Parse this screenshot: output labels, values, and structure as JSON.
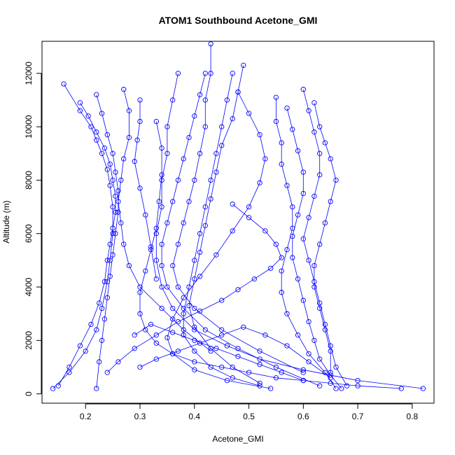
{
  "chart_data": {
    "type": "scatter",
    "title": "ATOM1 Southbound Acetone_GMI",
    "xlabel": "Acetone_GMI",
    "ylabel": "Altitude (m)",
    "xlim": [
      0.12,
      0.84
    ],
    "ylim": [
      -350,
      13200
    ],
    "xticks": [
      "0.2",
      "0.3",
      "0.4",
      "0.5",
      "0.6",
      "0.7",
      "0.8"
    ],
    "yticks": [
      "0",
      "2000",
      "4000",
      "6000",
      "8000",
      "10000",
      "12000"
    ],
    "grid": false,
    "legend": "none",
    "marker": "open circle",
    "line": true,
    "color": "#0000FF",
    "series": [
      {
        "x": [
          0.16,
          0.19,
          0.21,
          0.22,
          0.23,
          0.24,
          0.245,
          0.25,
          0.25,
          0.245,
          0.24,
          0.23,
          0.22,
          0.2,
          0.17,
          0.14
        ],
        "y": [
          11600,
          10600,
          10000,
          9500,
          9000,
          8400,
          7800,
          7000,
          6000,
          5000,
          4200,
          3200,
          2400,
          1600,
          800,
          200
        ]
      },
      {
        "x": [
          0.19,
          0.205,
          0.22,
          0.235,
          0.245,
          0.25,
          0.255,
          0.255,
          0.25,
          0.245,
          0.24,
          0.235,
          0.225,
          0.21,
          0.19,
          0.17,
          0.15
        ],
        "y": [
          10900,
          10400,
          9800,
          9200,
          8600,
          8000,
          7400,
          6800,
          6200,
          5600,
          5000,
          4200,
          3400,
          2600,
          1800,
          1000,
          300
        ]
      },
      {
        "x": [
          0.22,
          0.23,
          0.24,
          0.25,
          0.255,
          0.26,
          0.26,
          0.255,
          0.25,
          0.245,
          0.24,
          0.235,
          0.23,
          0.225,
          0.22
        ],
        "y": [
          11200,
          10500,
          9700,
          9000,
          8300,
          7600,
          6800,
          6000,
          5200,
          4400,
          3600,
          2800,
          2000,
          1200,
          200
        ]
      },
      {
        "x": [
          0.27,
          0.28,
          0.28,
          0.27,
          0.265,
          0.26,
          0.265,
          0.27,
          0.28,
          0.3,
          0.34,
          0.38,
          0.43
        ],
        "y": [
          11400,
          10600,
          9600,
          8800,
          8000,
          7200,
          6400,
          5600,
          4800,
          4000,
          3200,
          2400,
          1600
        ]
      },
      {
        "x": [
          0.3,
          0.3,
          0.295,
          0.29,
          0.3,
          0.31,
          0.32,
          0.33
        ],
        "y": [
          11000,
          10200,
          9500,
          8700,
          7700,
          6700,
          5500,
          4300
        ]
      },
      {
        "x": [
          0.33,
          0.34,
          0.34,
          0.335,
          0.33,
          0.32,
          0.31,
          0.3,
          0.3,
          0.31,
          0.33,
          0.36,
          0.4,
          0.45,
          0.5,
          0.55,
          0.6,
          0.65,
          0.7,
          0.78
        ],
        "y": [
          10200,
          9200,
          8200,
          7200,
          6200,
          5400,
          4600,
          3800,
          3000,
          2400,
          1900,
          1500,
          1200,
          1000,
          800,
          600,
          500,
          400,
          300,
          200
        ]
      },
      {
        "x": [
          0.37,
          0.36,
          0.35,
          0.35,
          0.34,
          0.34,
          0.33,
          0.33,
          0.34,
          0.36,
          0.4,
          0.46,
          0.52,
          0.6,
          0.7,
          0.82
        ],
        "y": [
          12000,
          11000,
          10000,
          9000,
          8000,
          7000,
          6000,
          5000,
          4000,
          3200,
          2400,
          1800,
          1300,
          900,
          500,
          200
        ]
      },
      {
        "x": [
          0.42,
          0.41,
          0.4,
          0.39,
          0.38,
          0.37,
          0.36,
          0.35,
          0.34,
          0.34,
          0.35,
          0.38,
          0.42,
          0.48,
          0.55,
          0.63
        ],
        "y": [
          12000,
          11200,
          10400,
          9600,
          8800,
          8000,
          7200,
          6400,
          5600,
          4800,
          4000,
          3200,
          2400,
          1700,
          1000,
          300
        ]
      },
      {
        "x": [
          0.43,
          0.43,
          0.42,
          0.42,
          0.41,
          0.4,
          0.39,
          0.38,
          0.37,
          0.36,
          0.37,
          0.4,
          0.45,
          0.52,
          0.6
        ],
        "y": [
          13100,
          12000,
          11000,
          10000,
          9000,
          8000,
          7200,
          6400,
          5600,
          4800,
          4000,
          3200,
          2400,
          1600,
          800
        ]
      },
      {
        "x": [
          0.47,
          0.46,
          0.45,
          0.44,
          0.43,
          0.42,
          0.41,
          0.4,
          0.39,
          0.38,
          0.38,
          0.4,
          0.43,
          0.47,
          0.52
        ],
        "y": [
          12000,
          11000,
          10000,
          9000,
          8000,
          7000,
          6000,
          5000,
          4000,
          3000,
          2200,
          1600,
          1000,
          600,
          300
        ]
      },
      {
        "x": [
          0.49,
          0.48,
          0.47,
          0.45,
          0.44,
          0.43,
          0.42,
          0.41,
          0.4,
          0.39,
          0.4,
          0.43,
          0.47,
          0.52
        ],
        "y": [
          12300,
          11300,
          10300,
          9300,
          8300,
          7300,
          6300,
          5300,
          4300,
          3300,
          2500,
          1700,
          1000,
          400
        ]
      },
      {
        "x": [
          0.48,
          0.5,
          0.52,
          0.53,
          0.52,
          0.5,
          0.47,
          0.44,
          0.41,
          0.38,
          0.36,
          0.35,
          0.36,
          0.4,
          0.46,
          0.54
        ],
        "y": [
          11300,
          10500,
          9700,
          8800,
          7900,
          7000,
          6100,
          5200,
          4400,
          3600,
          2800,
          2100,
          1500,
          900,
          500,
          200
        ]
      },
      {
        "x": [
          0.55,
          0.55,
          0.56,
          0.56,
          0.57,
          0.58,
          0.58,
          0.57,
          0.56,
          0.56,
          0.57,
          0.59,
          0.61,
          0.64,
          0.66
        ],
        "y": [
          11100,
          10200,
          9400,
          8600,
          7800,
          7000,
          6200,
          5400,
          4600,
          3800,
          3000,
          2200,
          1500,
          800,
          200
        ]
      },
      {
        "x": [
          0.57,
          0.58,
          0.59,
          0.6,
          0.6,
          0.59,
          0.58,
          0.58,
          0.59,
          0.6,
          0.61,
          0.62,
          0.63,
          0.65,
          0.67
        ],
        "y": [
          10700,
          9900,
          9100,
          8300,
          7500,
          6700,
          5900,
          5100,
          4300,
          3500,
          2700,
          2000,
          1300,
          700,
          200
        ]
      },
      {
        "x": [
          0.6,
          0.61,
          0.62,
          0.63,
          0.63,
          0.62,
          0.61,
          0.6,
          0.61,
          0.62,
          0.63,
          0.64,
          0.65,
          0.66,
          0.68
        ],
        "y": [
          11400,
          10600,
          9800,
          9000,
          8200,
          7400,
          6600,
          5800,
          5000,
          4200,
          3400,
          2600,
          1800,
          1000,
          300
        ]
      },
      {
        "x": [
          0.62,
          0.63,
          0.64,
          0.65,
          0.66,
          0.65,
          0.64,
          0.63,
          0.62,
          0.62,
          0.63,
          0.64,
          0.65,
          0.65
        ],
        "y": [
          10900,
          10000,
          9400,
          8800,
          8000,
          7200,
          6400,
          5600,
          4800,
          4000,
          3200,
          2400,
          1600,
          800
        ]
      },
      {
        "x": [
          0.24,
          0.26,
          0.29,
          0.33,
          0.37,
          0.41,
          0.45,
          0.48,
          0.51,
          0.54,
          0.56,
          0.55,
          0.53,
          0.5,
          0.47
        ],
        "y": [
          800,
          1200,
          1700,
          2200,
          2700,
          3100,
          3500,
          3900,
          4300,
          4700,
          5100,
          5600,
          6100,
          6600,
          7100
        ]
      },
      {
        "x": [
          0.29,
          0.32,
          0.36,
          0.4,
          0.44,
          0.48,
          0.52,
          0.56,
          0.6
        ],
        "y": [
          2200,
          2600,
          2300,
          2000,
          1700,
          1400,
          1100,
          800,
          500
        ]
      },
      {
        "x": [
          0.3,
          0.33,
          0.37,
          0.41,
          0.45,
          0.49,
          0.53,
          0.57,
          0.61,
          0.65
        ],
        "y": [
          1000,
          1300,
          1600,
          1900,
          2200,
          2500,
          2200,
          1800,
          1200,
          600
        ]
      }
    ]
  }
}
